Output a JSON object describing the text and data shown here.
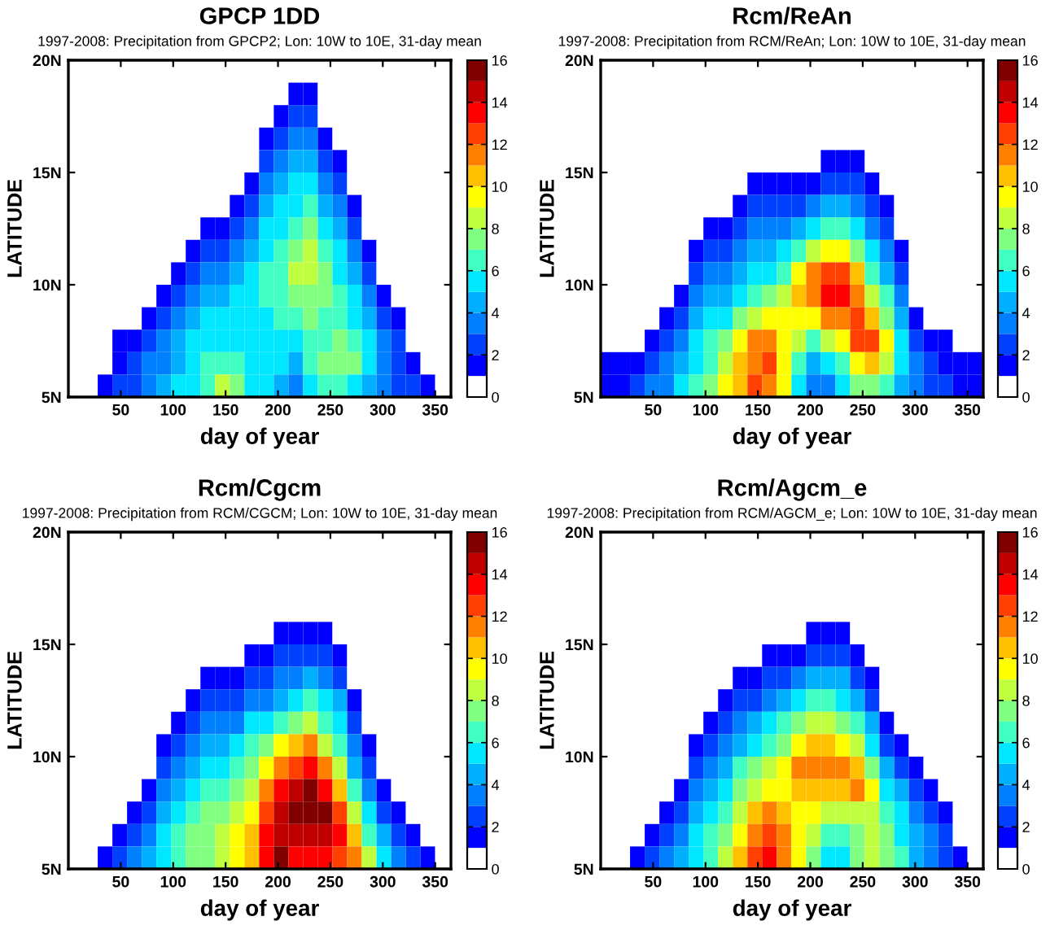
{
  "chart_data": [
    {
      "type": "heatmap",
      "title": "GPCP 1DD",
      "subtitle": "1997-2008: Precipitation from GPCP2; Lon: 10W to 10E, 31-day mean",
      "xlabel": "day of year",
      "ylabel": "LATITUDE",
      "x": [
        7,
        21,
        35,
        49,
        63,
        77,
        91,
        105,
        119,
        133,
        147,
        161,
        175,
        189,
        203,
        217,
        231,
        245,
        259,
        273,
        287,
        301,
        315,
        329,
        343,
        357
      ],
      "xlim": [
        0,
        365
      ],
      "xticks": [
        50,
        100,
        150,
        200,
        250,
        300,
        350
      ],
      "ylim": [
        5,
        20
      ],
      "yticks": [
        {
          "value": 5,
          "label": "5N"
        },
        {
          "value": 10,
          "label": "10N"
        },
        {
          "value": 15,
          "label": "15N"
        },
        {
          "value": 20,
          "label": "20N"
        }
      ],
      "clim": [
        0,
        16
      ],
      "cticks": [
        0,
        2,
        4,
        6,
        8,
        10,
        12,
        14,
        16
      ],
      "cells": [
        [
          0,
          0,
          0,
          0,
          0,
          0,
          0,
          0,
          0,
          0,
          0,
          0,
          0,
          0,
          0,
          0,
          0,
          0,
          0,
          0,
          0,
          0,
          0,
          0,
          0,
          0
        ],
        [
          0,
          0,
          0,
          0,
          0,
          0,
          0,
          0,
          0,
          0,
          0,
          0,
          0,
          0,
          0,
          1,
          1,
          0,
          0,
          0,
          0,
          0,
          0,
          0,
          0,
          0
        ],
        [
          0,
          0,
          0,
          0,
          0,
          0,
          0,
          0,
          0,
          0,
          0,
          0,
          0,
          0,
          1,
          2,
          2,
          0,
          0,
          0,
          0,
          0,
          0,
          0,
          0,
          0
        ],
        [
          0,
          0,
          0,
          0,
          0,
          0,
          0,
          0,
          0,
          0,
          0,
          0,
          0,
          1,
          2,
          3,
          3,
          1,
          0,
          0,
          0,
          0,
          0,
          0,
          0,
          0
        ],
        [
          0,
          0,
          0,
          0,
          0,
          0,
          0,
          0,
          0,
          0,
          0,
          0,
          0,
          2,
          3,
          4,
          4,
          2,
          1,
          0,
          0,
          0,
          0,
          0,
          0,
          0
        ],
        [
          0,
          0,
          0,
          0,
          0,
          0,
          0,
          0,
          0,
          0,
          0,
          0,
          1,
          3,
          4,
          5,
          5,
          3,
          2,
          0,
          0,
          0,
          0,
          0,
          0,
          0
        ],
        [
          0,
          0,
          0,
          0,
          0,
          0,
          0,
          0,
          0,
          0,
          0,
          1,
          2,
          4,
          5,
          5,
          6,
          4,
          3,
          1,
          0,
          0,
          0,
          0,
          0,
          0
        ],
        [
          0,
          0,
          0,
          0,
          0,
          0,
          0,
          0,
          0,
          1,
          1,
          2,
          3,
          5,
          5,
          6,
          7,
          5,
          4,
          2,
          0,
          0,
          0,
          0,
          0,
          0
        ],
        [
          0,
          0,
          0,
          0,
          0,
          0,
          0,
          0,
          1,
          2,
          2,
          3,
          4,
          5,
          6,
          7,
          8,
          6,
          5,
          3,
          1,
          0,
          0,
          0,
          0,
          0
        ],
        [
          0,
          0,
          0,
          0,
          0,
          0,
          0,
          1,
          2,
          3,
          3,
          4,
          5,
          6,
          6,
          8,
          8,
          7,
          5,
          4,
          2,
          0,
          0,
          0,
          0,
          0
        ],
        [
          0,
          0,
          0,
          0,
          0,
          0,
          1,
          2,
          3,
          4,
          4,
          5,
          5,
          6,
          6,
          7,
          7,
          7,
          6,
          5,
          3,
          1,
          0,
          0,
          0,
          0
        ],
        [
          0,
          0,
          0,
          0,
          0,
          1,
          2,
          3,
          4,
          5,
          5,
          5,
          5,
          5,
          6,
          6,
          7,
          6,
          6,
          5,
          4,
          2,
          1,
          0,
          0,
          0
        ],
        [
          0,
          0,
          0,
          1,
          1,
          2,
          3,
          4,
          5,
          5,
          5,
          5,
          5,
          5,
          5,
          5,
          6,
          6,
          7,
          6,
          5,
          3,
          2,
          0,
          0,
          0
        ],
        [
          0,
          0,
          0,
          1,
          2,
          3,
          3,
          4,
          5,
          6,
          6,
          6,
          5,
          5,
          5,
          4,
          6,
          7,
          7,
          7,
          5,
          3,
          2,
          1,
          0,
          0
        ],
        [
          0,
          0,
          1,
          2,
          2,
          3,
          4,
          5,
          5,
          6,
          8,
          7,
          5,
          5,
          4,
          3,
          5,
          6,
          6,
          5,
          4,
          3,
          2,
          2,
          1,
          0
        ]
      ]
    },
    {
      "type": "heatmap",
      "title": "Rcm/ReAn",
      "subtitle": "1997-2008: Precipitation from RCM/ReAn; Lon: 10W to 10E, 31-day mean",
      "xlabel": "day of year",
      "ylabel": "LATITUDE",
      "x": [
        7,
        21,
        35,
        49,
        63,
        77,
        91,
        105,
        119,
        133,
        147,
        161,
        175,
        189,
        203,
        217,
        231,
        245,
        259,
        273,
        287,
        301,
        315,
        329,
        343,
        357
      ],
      "xlim": [
        0,
        365
      ],
      "xticks": [
        50,
        100,
        150,
        200,
        250,
        300,
        350
      ],
      "ylim": [
        5,
        20
      ],
      "yticks": [
        {
          "value": 5,
          "label": "5N"
        },
        {
          "value": 10,
          "label": "10N"
        },
        {
          "value": 15,
          "label": "15N"
        },
        {
          "value": 20,
          "label": "20N"
        }
      ],
      "clim": [
        0,
        16
      ],
      "cticks": [
        0,
        2,
        4,
        6,
        8,
        10,
        12,
        14,
        16
      ],
      "cells": [
        [
          0,
          0,
          0,
          0,
          0,
          0,
          0,
          0,
          0,
          0,
          0,
          0,
          0,
          0,
          0,
          0,
          0,
          0,
          0,
          0,
          0,
          0,
          0,
          0,
          0,
          0
        ],
        [
          0,
          0,
          0,
          0,
          0,
          0,
          0,
          0,
          0,
          0,
          0,
          0,
          0,
          0,
          0,
          0,
          0,
          0,
          0,
          0,
          0,
          0,
          0,
          0,
          0,
          0
        ],
        [
          0,
          0,
          0,
          0,
          0,
          0,
          0,
          0,
          0,
          0,
          0,
          0,
          0,
          0,
          0,
          0,
          0,
          0,
          0,
          0,
          0,
          0,
          0,
          0,
          0,
          0
        ],
        [
          0,
          0,
          0,
          0,
          0,
          0,
          0,
          0,
          0,
          0,
          0,
          0,
          0,
          0,
          0,
          0,
          0,
          0,
          0,
          0,
          0,
          0,
          0,
          0,
          0,
          0
        ],
        [
          0,
          0,
          0,
          0,
          0,
          0,
          0,
          0,
          0,
          0,
          0,
          0,
          0,
          0,
          0,
          1,
          1,
          1,
          0,
          0,
          0,
          0,
          0,
          0,
          0,
          0
        ],
        [
          0,
          0,
          0,
          0,
          0,
          0,
          0,
          0,
          0,
          0,
          1,
          1,
          1,
          1,
          1,
          2,
          2,
          2,
          1,
          0,
          0,
          0,
          0,
          0,
          0,
          0
        ],
        [
          0,
          0,
          0,
          0,
          0,
          0,
          0,
          0,
          0,
          1,
          2,
          2,
          2,
          2,
          3,
          4,
          4,
          3,
          2,
          1,
          0,
          0,
          0,
          0,
          0,
          0
        ],
        [
          0,
          0,
          0,
          0,
          0,
          0,
          0,
          1,
          1,
          2,
          3,
          3,
          3,
          4,
          5,
          6,
          6,
          5,
          3,
          2,
          0,
          0,
          0,
          0,
          0,
          0
        ],
        [
          0,
          0,
          0,
          0,
          0,
          0,
          1,
          2,
          2,
          3,
          4,
          4,
          5,
          6,
          8,
          9,
          9,
          7,
          5,
          3,
          1,
          0,
          0,
          0,
          0,
          0
        ],
        [
          0,
          0,
          0,
          0,
          0,
          0,
          2,
          3,
          3,
          4,
          5,
          5,
          6,
          9,
          11,
          12,
          12,
          10,
          6,
          4,
          2,
          0,
          0,
          0,
          0,
          0
        ],
        [
          0,
          0,
          0,
          0,
          0,
          1,
          3,
          4,
          4,
          5,
          6,
          7,
          8,
          10,
          11,
          13,
          13,
          11,
          8,
          6,
          3,
          0,
          0,
          0,
          0,
          0
        ],
        [
          0,
          0,
          0,
          0,
          1,
          2,
          4,
          5,
          5,
          7,
          8,
          9,
          9,
          9,
          9,
          11,
          11,
          12,
          10,
          7,
          4,
          1,
          0,
          0,
          0,
          0
        ],
        [
          0,
          0,
          0,
          1,
          2,
          3,
          5,
          6,
          7,
          9,
          11,
          11,
          9,
          8,
          6,
          8,
          9,
          12,
          12,
          9,
          5,
          2,
          1,
          1,
          0,
          0
        ],
        [
          1,
          1,
          1,
          2,
          3,
          4,
          5,
          6,
          8,
          10,
          11,
          12,
          9,
          6,
          4,
          5,
          6,
          9,
          10,
          8,
          5,
          3,
          2,
          1,
          1,
          1
        ],
        [
          1,
          1,
          2,
          3,
          3,
          5,
          6,
          7,
          9,
          10,
          12,
          11,
          9,
          5,
          3,
          3,
          5,
          7,
          7,
          6,
          4,
          3,
          2,
          2,
          1,
          1
        ]
      ]
    },
    {
      "type": "heatmap",
      "title": "Rcm/Cgcm",
      "subtitle": "1997-2008: Precipitation from RCM/CGCM; Lon: 10W to 10E, 31-day mean",
      "xlabel": "day of year",
      "ylabel": "LATITUDE",
      "x": [
        7,
        21,
        35,
        49,
        63,
        77,
        91,
        105,
        119,
        133,
        147,
        161,
        175,
        189,
        203,
        217,
        231,
        245,
        259,
        273,
        287,
        301,
        315,
        329,
        343,
        357
      ],
      "xlim": [
        0,
        365
      ],
      "xticks": [
        50,
        100,
        150,
        200,
        250,
        300,
        350
      ],
      "ylim": [
        5,
        20
      ],
      "yticks": [
        {
          "value": 5,
          "label": "5N"
        },
        {
          "value": 10,
          "label": "10N"
        },
        {
          "value": 15,
          "label": "15N"
        },
        {
          "value": 20,
          "label": "20N"
        }
      ],
      "clim": [
        0,
        16
      ],
      "cticks": [
        0,
        2,
        4,
        6,
        8,
        10,
        12,
        14,
        16
      ],
      "cells": [
        [
          0,
          0,
          0,
          0,
          0,
          0,
          0,
          0,
          0,
          0,
          0,
          0,
          0,
          0,
          0,
          0,
          0,
          0,
          0,
          0,
          0,
          0,
          0,
          0,
          0,
          0
        ],
        [
          0,
          0,
          0,
          0,
          0,
          0,
          0,
          0,
          0,
          0,
          0,
          0,
          0,
          0,
          0,
          0,
          0,
          0,
          0,
          0,
          0,
          0,
          0,
          0,
          0,
          0
        ],
        [
          0,
          0,
          0,
          0,
          0,
          0,
          0,
          0,
          0,
          0,
          0,
          0,
          0,
          0,
          0,
          0,
          0,
          0,
          0,
          0,
          0,
          0,
          0,
          0,
          0,
          0
        ],
        [
          0,
          0,
          0,
          0,
          0,
          0,
          0,
          0,
          0,
          0,
          0,
          0,
          0,
          0,
          0,
          0,
          0,
          0,
          0,
          0,
          0,
          0,
          0,
          0,
          0,
          0
        ],
        [
          0,
          0,
          0,
          0,
          0,
          0,
          0,
          0,
          0,
          0,
          0,
          0,
          0,
          0,
          1,
          1,
          1,
          1,
          0,
          0,
          0,
          0,
          0,
          0,
          0,
          0
        ],
        [
          0,
          0,
          0,
          0,
          0,
          0,
          0,
          0,
          0,
          0,
          0,
          0,
          1,
          1,
          2,
          2,
          2,
          2,
          1,
          0,
          0,
          0,
          0,
          0,
          0,
          0
        ],
        [
          0,
          0,
          0,
          0,
          0,
          0,
          0,
          0,
          0,
          1,
          1,
          1,
          2,
          2,
          3,
          3,
          4,
          3,
          2,
          0,
          0,
          0,
          0,
          0,
          0,
          0
        ],
        [
          0,
          0,
          0,
          0,
          0,
          0,
          0,
          0,
          1,
          2,
          2,
          2,
          3,
          3,
          4,
          5,
          6,
          5,
          4,
          1,
          0,
          0,
          0,
          0,
          0,
          0
        ],
        [
          0,
          0,
          0,
          0,
          0,
          0,
          0,
          1,
          2,
          3,
          3,
          3,
          5,
          5,
          6,
          7,
          8,
          6,
          5,
          2,
          0,
          0,
          0,
          0,
          0,
          0
        ],
        [
          0,
          0,
          0,
          0,
          0,
          0,
          1,
          2,
          3,
          4,
          4,
          5,
          6,
          7,
          9,
          10,
          11,
          8,
          6,
          3,
          1,
          0,
          0,
          0,
          0,
          0
        ],
        [
          0,
          0,
          0,
          0,
          0,
          0,
          2,
          3,
          4,
          5,
          5,
          6,
          7,
          9,
          11,
          12,
          13,
          11,
          8,
          4,
          2,
          0,
          0,
          0,
          0,
          0
        ],
        [
          0,
          0,
          0,
          0,
          0,
          1,
          3,
          4,
          5,
          6,
          6,
          7,
          8,
          11,
          13,
          14,
          15,
          13,
          10,
          6,
          3,
          1,
          0,
          0,
          0,
          0
        ],
        [
          0,
          0,
          0,
          0,
          1,
          2,
          4,
          5,
          6,
          7,
          7,
          8,
          9,
          12,
          14,
          15,
          15,
          15,
          12,
          8,
          5,
          2,
          1,
          0,
          0,
          0
        ],
        [
          0,
          0,
          0,
          1,
          2,
          3,
          5,
          6,
          7,
          7,
          8,
          9,
          10,
          13,
          14,
          14,
          14,
          14,
          13,
          10,
          6,
          4,
          2,
          1,
          0,
          0
        ],
        [
          0,
          0,
          1,
          2,
          3,
          4,
          5,
          6,
          7,
          7,
          8,
          9,
          10,
          13,
          15,
          13,
          13,
          13,
          12,
          11,
          8,
          5,
          3,
          2,
          1,
          0
        ]
      ]
    },
    {
      "type": "heatmap",
      "title": "Rcm/Agcm_e",
      "subtitle": "1997-2008: Precipitation from RCM/AGCM_e; Lon: 10W to 10E, 31-day mean",
      "xlabel": "day of year",
      "ylabel": "LATITUDE",
      "x": [
        7,
        21,
        35,
        49,
        63,
        77,
        91,
        105,
        119,
        133,
        147,
        161,
        175,
        189,
        203,
        217,
        231,
        245,
        259,
        273,
        287,
        301,
        315,
        329,
        343,
        357
      ],
      "xlim": [
        0,
        365
      ],
      "xticks": [
        50,
        100,
        150,
        200,
        250,
        300,
        350
      ],
      "ylim": [
        5,
        20
      ],
      "yticks": [
        {
          "value": 5,
          "label": "5N"
        },
        {
          "value": 10,
          "label": "10N"
        },
        {
          "value": 15,
          "label": "15N"
        },
        {
          "value": 20,
          "label": "20N"
        }
      ],
      "clim": [
        0,
        16
      ],
      "cticks": [
        0,
        2,
        4,
        6,
        8,
        10,
        12,
        14,
        16
      ],
      "cells": [
        [
          0,
          0,
          0,
          0,
          0,
          0,
          0,
          0,
          0,
          0,
          0,
          0,
          0,
          0,
          0,
          0,
          0,
          0,
          0,
          0,
          0,
          0,
          0,
          0,
          0,
          0
        ],
        [
          0,
          0,
          0,
          0,
          0,
          0,
          0,
          0,
          0,
          0,
          0,
          0,
          0,
          0,
          0,
          0,
          0,
          0,
          0,
          0,
          0,
          0,
          0,
          0,
          0,
          0
        ],
        [
          0,
          0,
          0,
          0,
          0,
          0,
          0,
          0,
          0,
          0,
          0,
          0,
          0,
          0,
          0,
          0,
          0,
          0,
          0,
          0,
          0,
          0,
          0,
          0,
          0,
          0
        ],
        [
          0,
          0,
          0,
          0,
          0,
          0,
          0,
          0,
          0,
          0,
          0,
          0,
          0,
          0,
          0,
          0,
          0,
          0,
          0,
          0,
          0,
          0,
          0,
          0,
          0,
          0
        ],
        [
          0,
          0,
          0,
          0,
          0,
          0,
          0,
          0,
          0,
          0,
          0,
          0,
          0,
          0,
          1,
          1,
          1,
          0,
          0,
          0,
          0,
          0,
          0,
          0,
          0,
          0
        ],
        [
          0,
          0,
          0,
          0,
          0,
          0,
          0,
          0,
          0,
          0,
          0,
          1,
          1,
          1,
          2,
          2,
          2,
          1,
          0,
          0,
          0,
          0,
          0,
          0,
          0,
          0
        ],
        [
          0,
          0,
          0,
          0,
          0,
          0,
          0,
          0,
          0,
          1,
          1,
          2,
          2,
          3,
          4,
          4,
          4,
          2,
          1,
          0,
          0,
          0,
          0,
          0,
          0,
          0
        ],
        [
          0,
          0,
          0,
          0,
          0,
          0,
          0,
          0,
          1,
          2,
          2,
          3,
          4,
          5,
          6,
          6,
          5,
          4,
          2,
          0,
          0,
          0,
          0,
          0,
          0,
          0
        ],
        [
          0,
          0,
          0,
          0,
          0,
          0,
          0,
          1,
          2,
          3,
          4,
          5,
          6,
          7,
          8,
          8,
          7,
          6,
          4,
          1,
          0,
          0,
          0,
          0,
          0,
          0
        ],
        [
          0,
          0,
          0,
          0,
          0,
          0,
          1,
          2,
          3,
          4,
          5,
          6,
          7,
          9,
          10,
          10,
          9,
          8,
          5,
          2,
          1,
          0,
          0,
          0,
          0,
          0
        ],
        [
          0,
          0,
          0,
          0,
          0,
          0,
          2,
          3,
          4,
          6,
          7,
          8,
          9,
          11,
          11,
          11,
          11,
          10,
          7,
          4,
          2,
          1,
          0,
          0,
          0,
          0
        ],
        [
          0,
          0,
          0,
          0,
          0,
          1,
          3,
          4,
          5,
          7,
          8,
          9,
          9,
          10,
          10,
          10,
          10,
          11,
          9,
          5,
          4,
          2,
          1,
          0,
          0,
          0
        ],
        [
          0,
          0,
          0,
          0,
          1,
          2,
          4,
          5,
          6,
          8,
          10,
          11,
          10,
          9,
          9,
          8,
          8,
          8,
          8,
          6,
          5,
          3,
          2,
          1,
          0,
          0
        ],
        [
          0,
          0,
          0,
          1,
          2,
          3,
          5,
          6,
          7,
          9,
          11,
          12,
          11,
          9,
          8,
          6,
          6,
          7,
          8,
          7,
          5,
          4,
          3,
          2,
          0,
          0
        ],
        [
          0,
          0,
          1,
          2,
          3,
          4,
          5,
          6,
          8,
          10,
          12,
          13,
          11,
          9,
          7,
          5,
          5,
          7,
          8,
          7,
          6,
          4,
          3,
          2,
          1,
          0
        ]
      ]
    }
  ]
}
